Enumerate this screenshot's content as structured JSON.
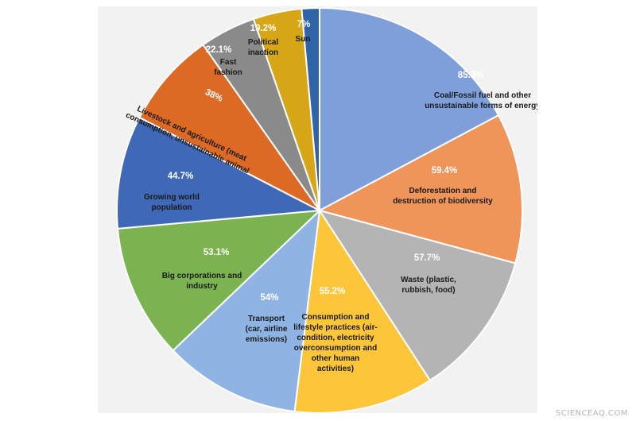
{
  "chart_data": {
    "type": "pie",
    "title": "",
    "slices": [
      {
        "label": "Coal/Fossil fuel and other unsustainable forms of energy",
        "lines": [
          "Coal/Fossil fuel and other",
          "unsustainable forms of energy"
        ],
        "value": 85.3,
        "display": "85.3%",
        "color": "#7f9fdb"
      },
      {
        "label": "Deforestation and destruction of biodiversity",
        "lines": [
          "Deforestation and",
          "destruction of biodiversity"
        ],
        "value": 59.4,
        "display": "59.4%",
        "color": "#f0955a"
      },
      {
        "label": "Waste (plastic, rubbish, food)",
        "lines": [
          "Waste (plastic,",
          "rubbish, food)"
        ],
        "value": 57.7,
        "display": "57.7%",
        "color": "#b4b4b4"
      },
      {
        "label": "Consumption and lifestyle practices (air-condition, electricity overconsumption and other human activities)",
        "lines": [
          "Consumption and",
          "lifestyle practices (air-",
          "condition, electricity",
          "overconsumption and",
          "other human",
          "activities)"
        ],
        "value": 55.2,
        "display": "55.2%",
        "color": "#fdc63a"
      },
      {
        "label": "Transport (car, airline emissions)",
        "lines": [
          "Transport",
          "(car, airline",
          "emissions)"
        ],
        "value": 54,
        "display": "54%",
        "color": "#8fb3e3"
      },
      {
        "label": "Big corporations and industry",
        "lines": [
          "Big corporations and",
          "industry"
        ],
        "value": 53.1,
        "display": "53.1%",
        "color": "#7ab34f"
      },
      {
        "label": "Growing world population",
        "lines": [
          "Growing world",
          "population"
        ],
        "value": 44.7,
        "display": "44.7%",
        "color": "#3f68b6"
      },
      {
        "label": "Livestock and agriculture (meat consumption, unsustainable animal",
        "lines": [
          "Livestock and agriculture (meat",
          "consumption, unsustainable animal"
        ],
        "value": 38,
        "display": "38%",
        "color": "#dc6a24"
      },
      {
        "label": "Fast fashion",
        "lines": [
          "Fast",
          "fashion"
        ],
        "value": 22.1,
        "display": "22.1%",
        "color": "#8a8a8a"
      },
      {
        "label": "Political inaction",
        "lines": [
          "Political",
          "inaction"
        ],
        "value": 19.2,
        "display": "19.2%",
        "color": "#d6a617"
      },
      {
        "label": "Sun",
        "lines": [
          "Sun"
        ],
        "value": 7,
        "display": "7%",
        "color": "#2f64a8"
      }
    ]
  },
  "watermark": "SCIENCEAQ.COM"
}
